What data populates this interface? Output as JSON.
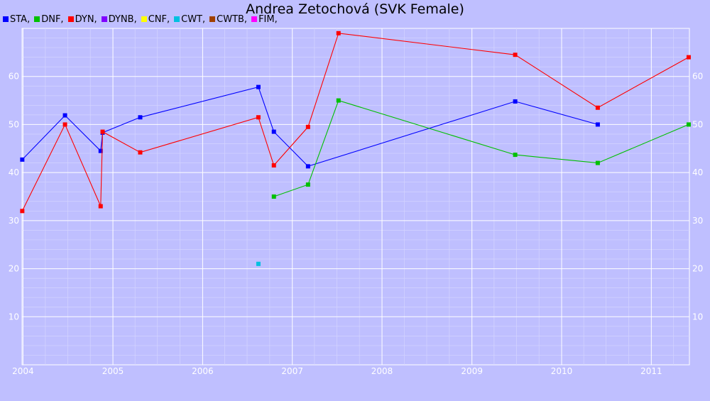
{
  "chart_data": {
    "type": "line",
    "title": "Andrea Zetochová (SVK Female)",
    "legend": [
      "STA,",
      "DNF,",
      "DYN,",
      "DYNB,",
      "CNF,",
      "CWT,",
      "CWTB,",
      "FIM,"
    ],
    "legend_colors": [
      "#0000ff",
      "#00c000",
      "#ff0000",
      "#8000ff",
      "#ffff00",
      "#00c0e0",
      "#a04000",
      "#ff00ff"
    ],
    "x_ticks": [
      "2004",
      "2005",
      "2006",
      "2007",
      "2008",
      "2009",
      "2010",
      "2011"
    ],
    "y_ticks": [
      "10",
      "20",
      "30",
      "40",
      "50",
      "60"
    ],
    "xlim": [
      "2003-12-28",
      "2011-06-05"
    ],
    "ylim": [
      0,
      70
    ],
    "grid": true,
    "series": [
      {
        "name": "STA",
        "color": "#0000ff",
        "points": [
          {
            "x": "2003-12-29",
            "y": 42.7
          },
          {
            "x": "2004-06-20",
            "y": 51.9
          },
          {
            "x": "2004-11-12",
            "y": 44.5
          },
          {
            "x": "2004-11-20",
            "y": 48.3
          },
          {
            "x": "2005-04-22",
            "y": 51.5
          },
          {
            "x": "2006-08-16",
            "y": 57.8
          },
          {
            "x": "2006-10-18",
            "y": 48.5
          },
          {
            "x": "2007-03-06",
            "y": 41.3
          },
          {
            "x": "2009-06-26",
            "y": 54.8
          },
          {
            "x": "2010-05-28",
            "y": 50.0
          }
        ]
      },
      {
        "name": "DNF",
        "color": "#00c000",
        "points": [
          {
            "x": "2006-10-18",
            "y": 35.0
          },
          {
            "x": "2007-03-06",
            "y": 37.5
          },
          {
            "x": "2007-07-08",
            "y": 55.0
          },
          {
            "x": "2009-06-26",
            "y": 43.7
          },
          {
            "x": "2010-05-28",
            "y": 42.0
          },
          {
            "x": "2011-06-02",
            "y": 50.0
          }
        ]
      },
      {
        "name": "DYN",
        "color": "#ff0000",
        "points": [
          {
            "x": "2003-12-29",
            "y": 32.0
          },
          {
            "x": "2004-06-20",
            "y": 50.0
          },
          {
            "x": "2004-11-12",
            "y": 33.0
          },
          {
            "x": "2004-11-20",
            "y": 48.5
          },
          {
            "x": "2005-04-22",
            "y": 44.2
          },
          {
            "x": "2006-08-16",
            "y": 51.5
          },
          {
            "x": "2006-10-18",
            "y": 41.5
          },
          {
            "x": "2007-03-06",
            "y": 49.5
          },
          {
            "x": "2007-07-08",
            "y": 69.0
          },
          {
            "x": "2009-06-26",
            "y": 64.5
          },
          {
            "x": "2010-05-28",
            "y": 53.5
          },
          {
            "x": "2011-06-02",
            "y": 64.0
          }
        ]
      },
      {
        "name": "CWT",
        "color": "#00c0e0",
        "points": [
          {
            "x": "2006-08-16",
            "y": 21.0
          }
        ]
      }
    ]
  }
}
